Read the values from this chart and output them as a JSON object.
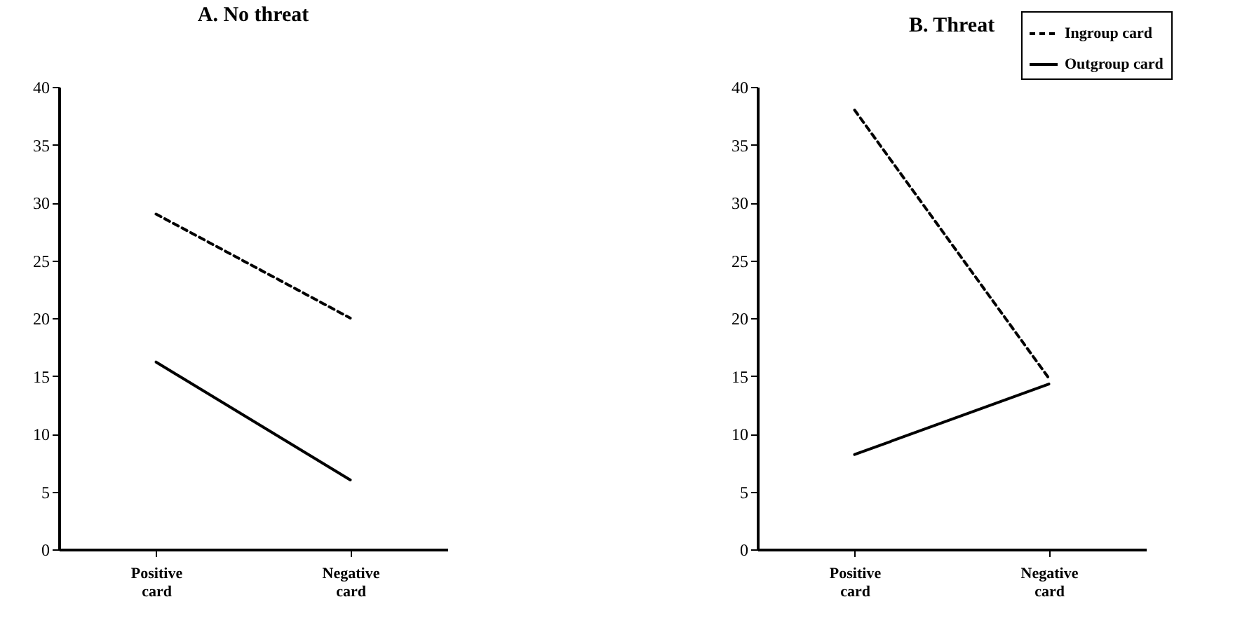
{
  "chart_data": [
    {
      "type": "line",
      "title": "A. No threat",
      "categories": [
        "Positive card",
        "Negative card"
      ],
      "ylim": [
        0,
        40
      ],
      "yticks": [
        0,
        5,
        10,
        15,
        20,
        25,
        30,
        35,
        40
      ],
      "grid": false,
      "marker": "none",
      "series": [
        {
          "color": "#000000",
          "line_style": "dashed",
          "values": [
            29,
            20
          ]
        },
        {
          "color": "#000000",
          "line_style": "solid",
          "values": [
            16.2,
            6
          ]
        }
      ]
    },
    {
      "type": "line",
      "title": "B. Threat",
      "categories": [
        "Positive card",
        "Negative card"
      ],
      "ylim": [
        0,
        40
      ],
      "yticks": [
        0,
        5,
        10,
        15,
        20,
        25,
        30,
        35,
        40
      ],
      "grid": false,
      "marker": "none",
      "legend": "top right",
      "series": [
        {
          "name": "Ingroup card",
          "color": "#000000",
          "line_style": "dashed",
          "values": [
            38,
            14.8
          ]
        },
        {
          "name": "Outgroup card",
          "color": "#000000",
          "line_style": "solid",
          "values": [
            8.2,
            14.3
          ]
        }
      ]
    }
  ]
}
